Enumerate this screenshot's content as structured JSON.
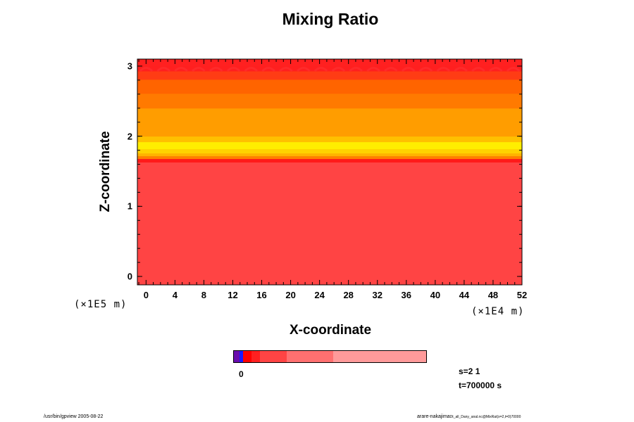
{
  "chart_data": {
    "type": "heatmap",
    "title": "Mixing Ratio",
    "xlabel": "X-coordinate",
    "ylabel": "Z-coordinate",
    "x_ticks": [
      "0",
      "4",
      "8",
      "12",
      "16",
      "20",
      "24",
      "28",
      "32",
      "36",
      "40",
      "44",
      "48",
      "52"
    ],
    "y_ticks": [
      "0",
      "1",
      "2",
      "3"
    ],
    "xlim": [
      -1.2,
      52
    ],
    "ylim": [
      -0.12,
      3.1
    ],
    "x_scale_label": "(×1E4 m)",
    "y_scale_label": "(×1E5 m)",
    "layers": [
      {
        "z_from": -0.12,
        "z_to": 1.63,
        "color": "#ff4444"
      },
      {
        "z_from": 1.63,
        "z_to": 1.68,
        "color": "#ff1a1a"
      },
      {
        "z_from": 1.68,
        "z_to": 1.72,
        "color": "#ff7f00"
      },
      {
        "z_from": 1.72,
        "z_to": 1.76,
        "color": "#ffb300"
      },
      {
        "z_from": 1.76,
        "z_to": 1.82,
        "color": "#ffd200"
      },
      {
        "z_from": 1.82,
        "z_to": 1.92,
        "color": "#ffee00"
      },
      {
        "z_from": 1.92,
        "z_to": 2.0,
        "color": "#ffc000"
      },
      {
        "z_from": 2.0,
        "z_to": 2.4,
        "color": "#ff9d00"
      },
      {
        "z_from": 2.4,
        "z_to": 2.61,
        "color": "#ff7a00"
      },
      {
        "z_from": 2.61,
        "z_to": 2.81,
        "color": "#ff6400"
      },
      {
        "z_from": 2.81,
        "z_to": 2.93,
        "color": "#ff3c14"
      },
      {
        "z_from": 2.93,
        "z_to": 3.1,
        "color": "#ff1f1f"
      }
    ],
    "colorbar": [
      {
        "color": "#6a0dad",
        "weight": 1
      },
      {
        "color": "#1a1aff",
        "weight": 0.6
      },
      {
        "color": "#ff0000",
        "weight": 1.4
      },
      {
        "color": "#ff2020",
        "weight": 1.5
      },
      {
        "color": "#ff4444",
        "weight": 4.6
      },
      {
        "color": "#ff7070",
        "weight": 8
      },
      {
        "color": "#ff9a9a",
        "weight": 16
      }
    ],
    "colorbar_label": "0"
  },
  "info": {
    "s": "s=2 1",
    "t": "t=700000 s"
  },
  "footer": {
    "left": "/usr/bin/gpview 2005-08-22",
    "right_main": "arare-nakajima",
    "right_small": "Dt_all_Dany_anal.nc@MixRat(x=2,t=0)70000"
  }
}
